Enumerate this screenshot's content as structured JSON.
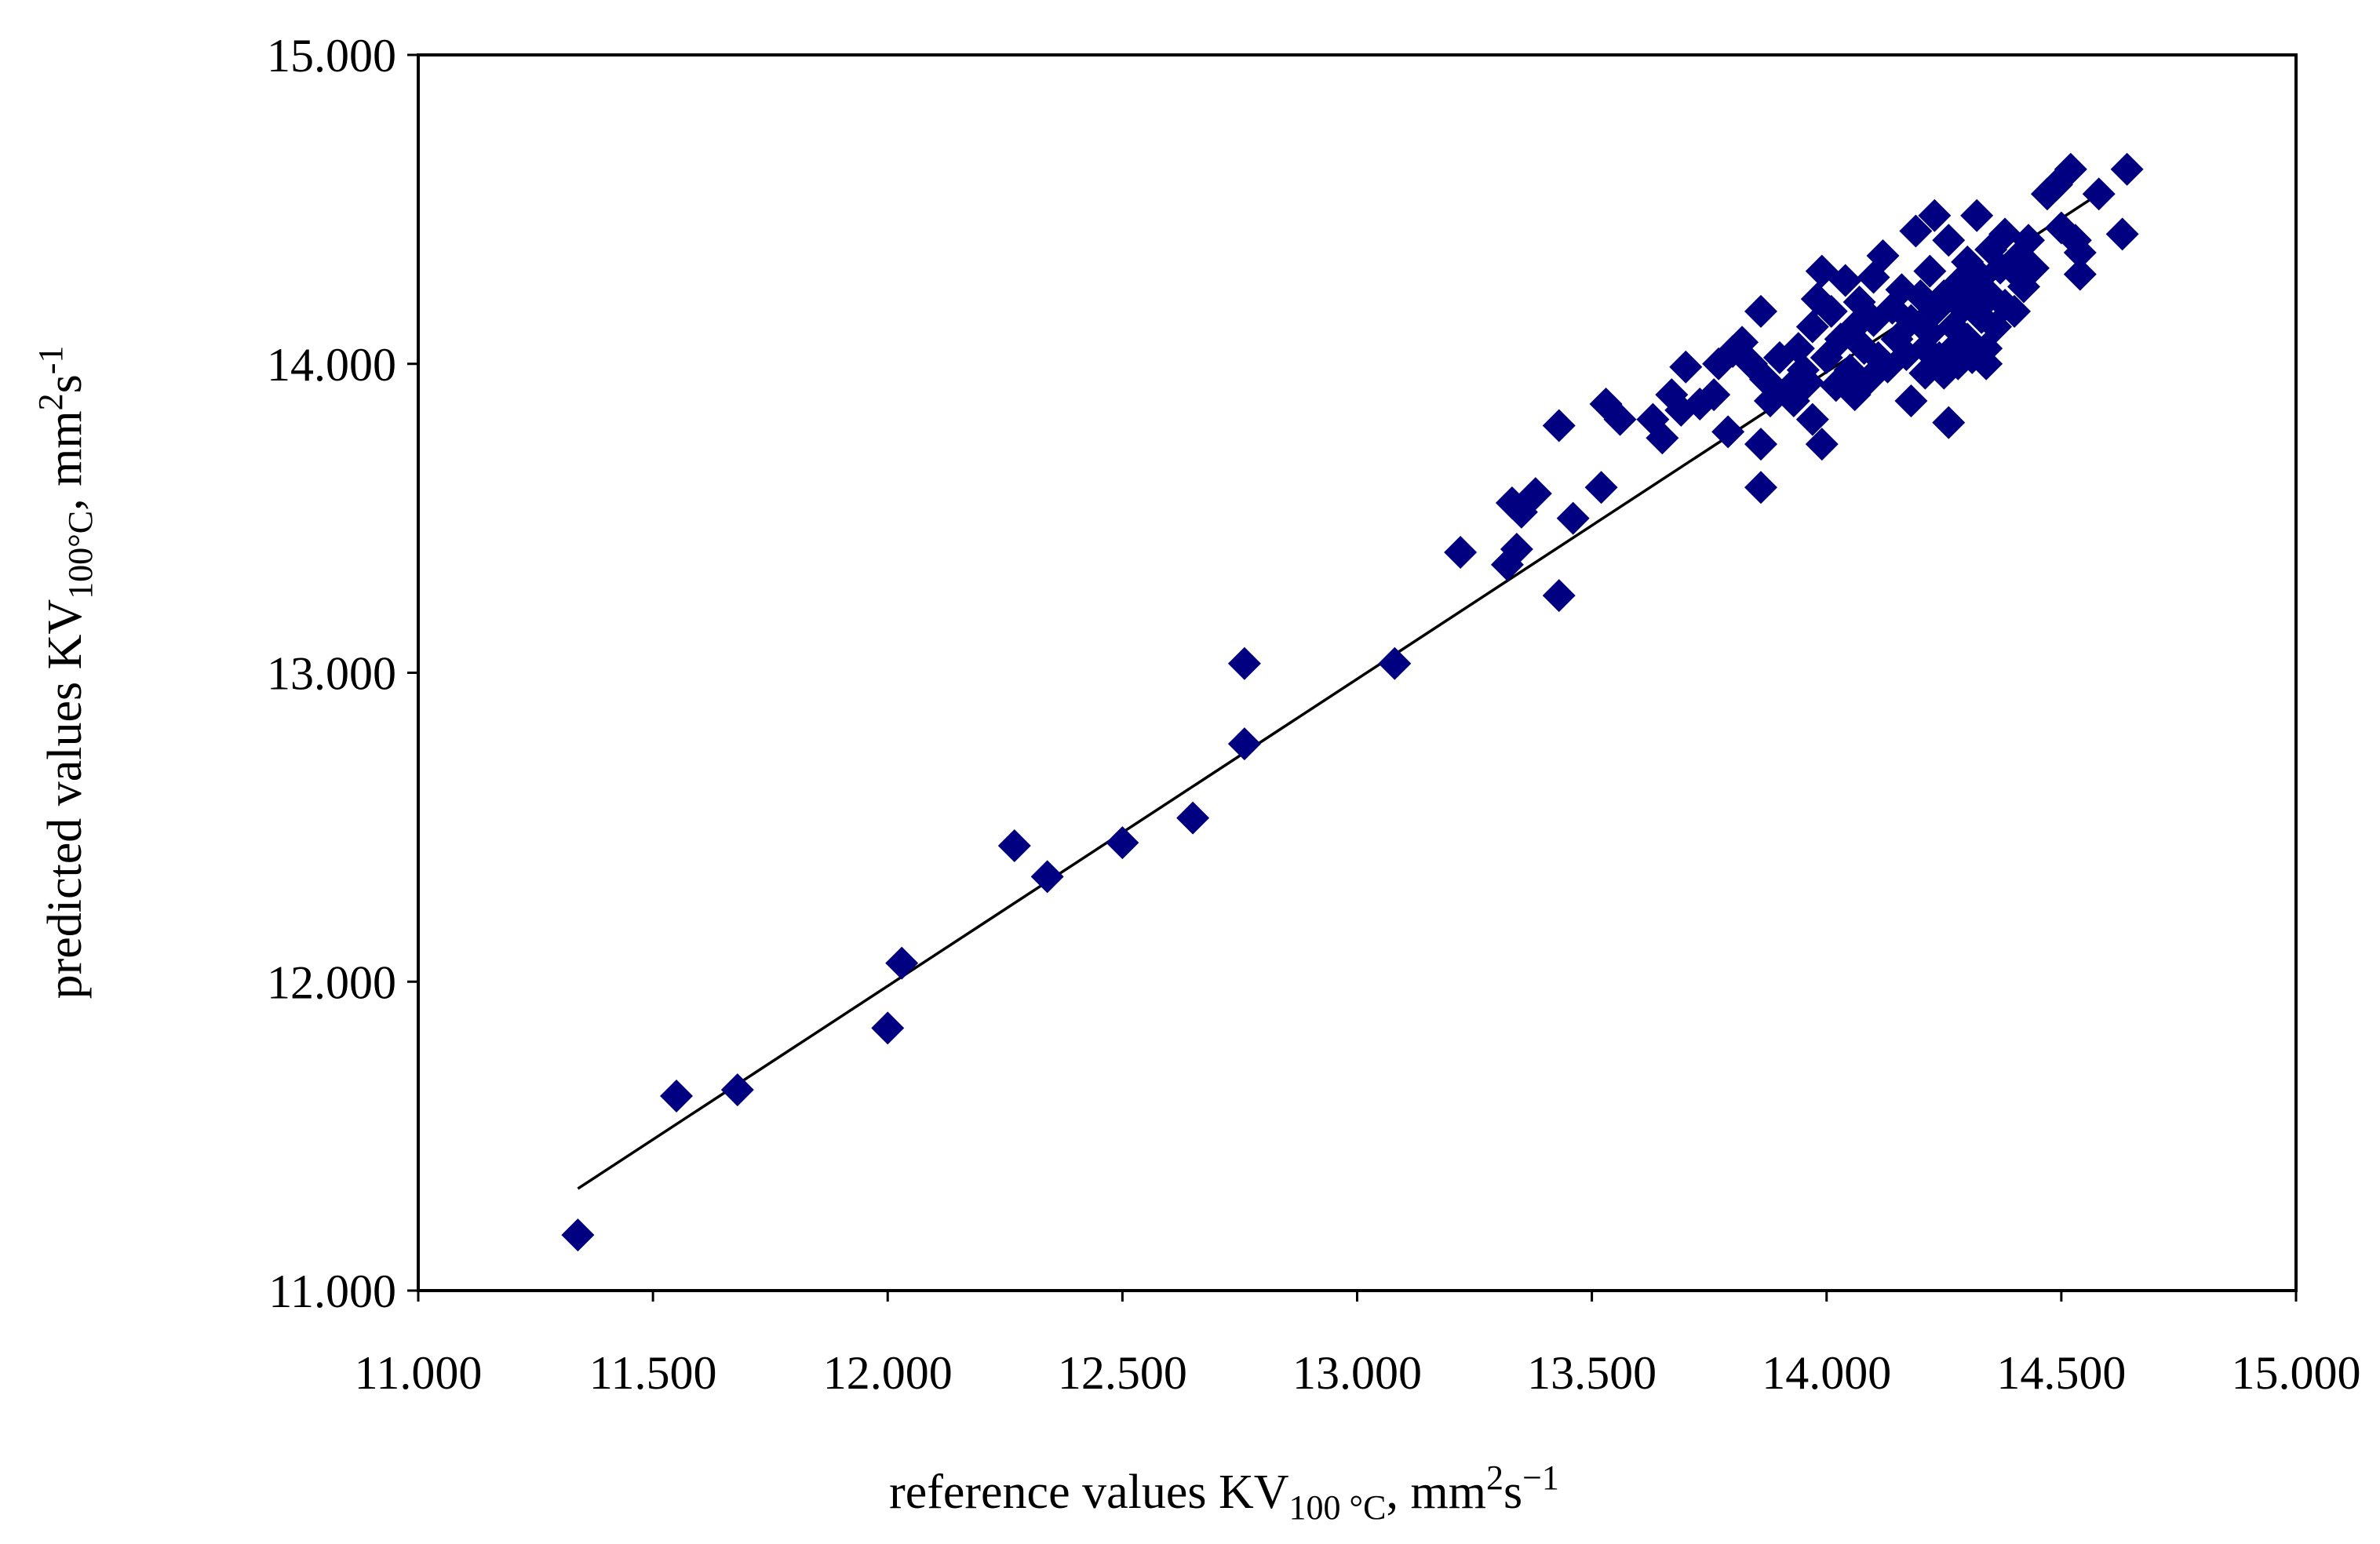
{
  "chart_data": {
    "type": "scatter",
    "title": "",
    "xlabel": {
      "main": "reference values KV",
      "sub": "100 °C",
      "unit_pre": ",  mm",
      "sup1": "2",
      "unit_mid": "s",
      "sup2": "−1"
    },
    "ylabel": {
      "main": "predicted values KV",
      "sub": "100°C",
      "unit_pre": ",  mm",
      "sup1": "2",
      "unit_mid": "s",
      "sup2": "-1"
    },
    "xlim": [
      11.0,
      15.0
    ],
    "ylim": [
      11.0,
      15.0
    ],
    "x_ticks": [
      "11.000",
      "11.500",
      "12.000",
      "12.500",
      "13.000",
      "13.500",
      "14.000",
      "14.500",
      "15.000"
    ],
    "y_ticks": [
      "11.000",
      "12.000",
      "13.000",
      "14.000",
      "15.000"
    ],
    "grid": false,
    "legend": "none",
    "marker": "diamond",
    "marker_color": "#000080",
    "line_color": "#000000",
    "fit_line": {
      "x": [
        11.34,
        14.6
      ],
      "y": [
        11.33,
        14.57
      ]
    },
    "series": [
      {
        "points": [
          [
            11.34,
            11.18
          ],
          [
            11.55,
            11.63
          ],
          [
            11.68,
            11.65
          ],
          [
            12.0,
            11.85
          ],
          [
            12.03,
            12.06
          ],
          [
            12.27,
            12.44
          ],
          [
            12.34,
            12.34
          ],
          [
            12.5,
            12.45
          ],
          [
            12.65,
            12.53
          ],
          [
            12.76,
            12.77
          ],
          [
            12.76,
            13.03
          ],
          [
            13.08,
            13.03
          ],
          [
            13.22,
            13.39
          ],
          [
            13.32,
            13.35
          ],
          [
            13.34,
            13.4
          ],
          [
            13.33,
            13.55
          ],
          [
            13.35,
            13.52
          ],
          [
            13.38,
            13.58
          ],
          [
            13.43,
            13.25
          ],
          [
            13.43,
            13.8
          ],
          [
            13.46,
            13.5
          ],
          [
            13.52,
            13.6
          ],
          [
            13.53,
            13.87
          ],
          [
            13.56,
            13.82
          ],
          [
            13.63,
            13.82
          ],
          [
            13.65,
            13.76
          ],
          [
            13.67,
            13.9
          ],
          [
            13.69,
            13.85
          ],
          [
            13.7,
            13.99
          ],
          [
            13.73,
            13.87
          ],
          [
            13.76,
            13.9
          ],
          [
            13.77,
            14.0
          ],
          [
            13.79,
            13.78
          ],
          [
            13.8,
            14.04
          ],
          [
            13.82,
            14.07
          ],
          [
            13.84,
            14.0
          ],
          [
            13.86,
            13.6
          ],
          [
            13.86,
            13.74
          ],
          [
            13.86,
            14.17
          ],
          [
            13.87,
            13.95
          ],
          [
            13.88,
            13.88
          ],
          [
            13.9,
            14.02
          ],
          [
            13.92,
            13.92
          ],
          [
            13.93,
            13.88
          ],
          [
            13.94,
            14.05
          ],
          [
            13.95,
            13.98
          ],
          [
            13.96,
            13.94
          ],
          [
            13.97,
            13.82
          ],
          [
            13.97,
            14.12
          ],
          [
            13.98,
            14.21
          ],
          [
            13.99,
            13.74
          ],
          [
            13.99,
            14.3
          ],
          [
            14.0,
            14.02
          ],
          [
            14.01,
            14.17
          ],
          [
            14.02,
            13.93
          ],
          [
            14.03,
            14.08
          ],
          [
            14.04,
            14.27
          ],
          [
            14.05,
            13.98
          ],
          [
            14.06,
            13.9
          ],
          [
            14.06,
            14.12
          ],
          [
            14.07,
            14.2
          ],
          [
            14.08,
            14.05
          ],
          [
            14.09,
            13.95
          ],
          [
            14.1,
            14.14
          ],
          [
            14.1,
            14.28
          ],
          [
            14.11,
            14.02
          ],
          [
            14.12,
            14.35
          ],
          [
            14.13,
            13.99
          ],
          [
            14.14,
            14.18
          ],
          [
            14.15,
            14.08
          ],
          [
            14.16,
            14.24
          ],
          [
            14.17,
            14.03
          ],
          [
            14.18,
            13.88
          ],
          [
            14.18,
            14.14
          ],
          [
            14.19,
            14.43
          ],
          [
            14.2,
            14.22
          ],
          [
            14.21,
            14.05
          ],
          [
            14.21,
            13.97
          ],
          [
            14.22,
            14.3
          ],
          [
            14.22,
            14.1
          ],
          [
            14.23,
            14.48
          ],
          [
            14.23,
            14.17
          ],
          [
            14.24,
            14.02
          ],
          [
            14.25,
            14.22
          ],
          [
            14.25,
            13.97
          ],
          [
            14.26,
            13.81
          ],
          [
            14.26,
            14.4
          ],
          [
            14.27,
            14.12
          ],
          [
            14.27,
            14.05
          ],
          [
            14.28,
            14.26
          ],
          [
            14.28,
            14.0
          ],
          [
            14.29,
            14.18
          ],
          [
            14.3,
            14.33
          ],
          [
            14.3,
            14.08
          ],
          [
            14.31,
            14.22
          ],
          [
            14.31,
            14.02
          ],
          [
            14.32,
            14.48
          ],
          [
            14.33,
            14.15
          ],
          [
            14.33,
            14.28
          ],
          [
            14.34,
            14.05
          ],
          [
            14.34,
            14.0
          ],
          [
            14.35,
            14.37
          ],
          [
            14.35,
            14.22
          ],
          [
            14.36,
            14.12
          ],
          [
            14.37,
            14.31
          ],
          [
            14.38,
            14.19
          ],
          [
            14.38,
            14.42
          ],
          [
            14.4,
            14.17
          ],
          [
            14.4,
            14.3
          ],
          [
            14.41,
            14.35
          ],
          [
            14.42,
            14.25
          ],
          [
            14.43,
            14.4
          ],
          [
            14.44,
            14.31
          ],
          [
            14.47,
            14.55
          ],
          [
            14.49,
            14.58
          ],
          [
            14.5,
            14.44
          ],
          [
            14.52,
            14.63
          ],
          [
            14.53,
            14.4
          ],
          [
            14.54,
            14.36
          ],
          [
            14.54,
            14.29
          ],
          [
            14.58,
            14.55
          ],
          [
            14.63,
            14.42
          ],
          [
            14.64,
            14.63
          ]
        ]
      }
    ]
  }
}
